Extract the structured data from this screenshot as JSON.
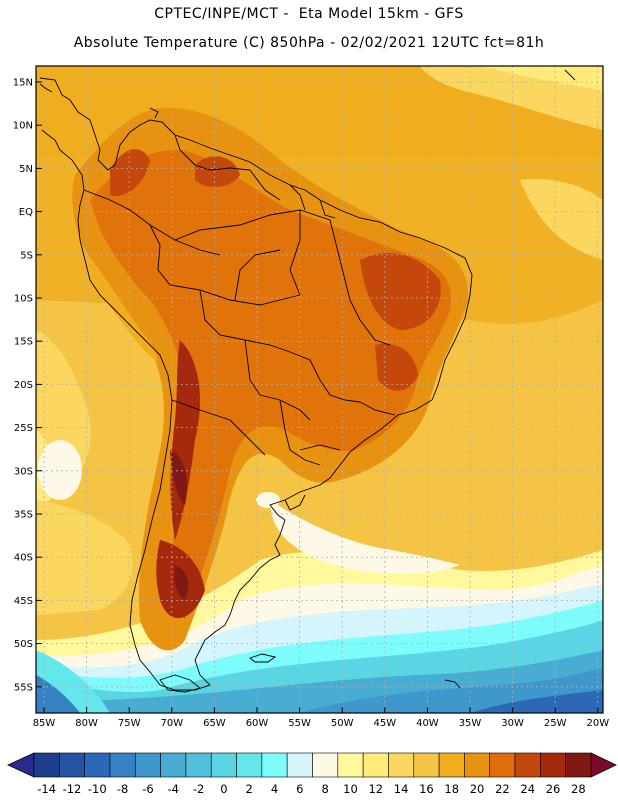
{
  "header": {
    "line1": "CPTEC/INPE/MCT -  Eta Model 15km - GFS",
    "line2": "Absolute Temperature (C) 850hPa - 02/02/2021 12UTC fct=81h"
  },
  "map": {
    "lat_ticks": [
      "15N",
      "10N",
      "5N",
      "EQ",
      "5S",
      "10S",
      "15S",
      "20S",
      "25S",
      "30S",
      "35S",
      "40S",
      "45S",
      "50S",
      "55S"
    ],
    "lon_ticks": [
      "85W",
      "80W",
      "75W",
      "70W",
      "65W",
      "60W",
      "55W",
      "50W",
      "45W",
      "40W",
      "35W",
      "30W",
      "25W",
      "20W"
    ],
    "land_color": "#000000",
    "grid_color": "#b0b0b0"
  },
  "colorbar": {
    "labels": [
      "-14",
      "-12",
      "-10",
      "-8",
      "-6",
      "-4",
      "-2",
      "0",
      "2",
      "4",
      "6",
      "8",
      "10",
      "12",
      "14",
      "16",
      "18",
      "20",
      "22",
      "24",
      "26",
      "28"
    ],
    "colors": [
      "#1b3f8a",
      "#2354a4",
      "#2b69b8",
      "#3681c4",
      "#3f98cc",
      "#48acd3",
      "#52bfdc",
      "#5bd4e4",
      "#63e7ec",
      "#7efcfc",
      "#d3f5fb",
      "#fef8e6",
      "#fff89d",
      "#feeb7a",
      "#fbd760",
      "#f6c445",
      "#f0ae1e",
      "#e89212",
      "#df6d0a",
      "#c4480b",
      "#a52a0d",
      "#801814"
    ],
    "left_extend_color": "#2a2a8c",
    "right_extend_color": "#7d0a28"
  }
}
